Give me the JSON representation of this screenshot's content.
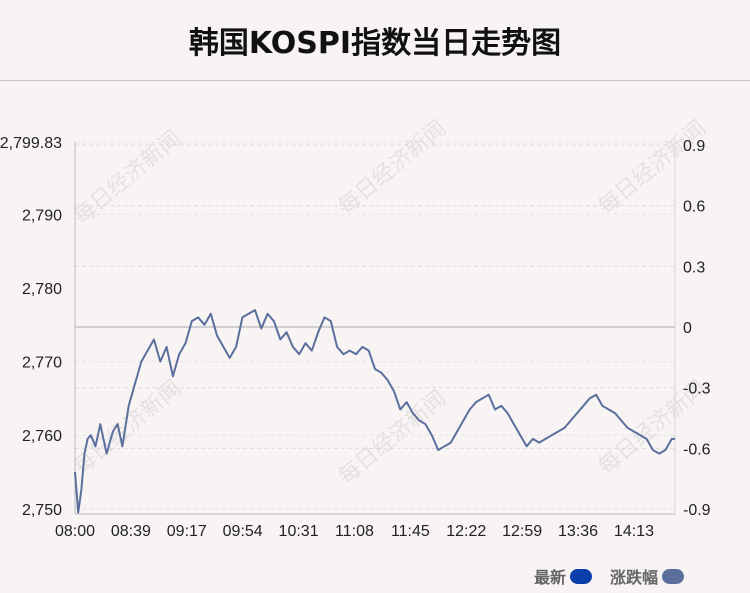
{
  "title": "韩国KOSPI指数当日走势图",
  "watermark": "每日经济新闻",
  "legend": [
    {
      "label": "最新",
      "color": "#0a3ea8"
    },
    {
      "label": "涨跌幅",
      "color": "#5b6f9d"
    }
  ],
  "chart_data": {
    "type": "line",
    "title": "韩国KOSPI指数当日走势图",
    "x_ticks": [
      "08:00",
      "08:39",
      "09:17",
      "09:54",
      "10:31",
      "11:08",
      "11:45",
      "12:22",
      "12:59",
      "13:36",
      "14:13"
    ],
    "y_left_ticks": [
      "2,750",
      "2,760",
      "2,770",
      "2,780",
      "2,790",
      "2,799.83"
    ],
    "y_left_tick_values": [
      2750,
      2760,
      2770,
      2780,
      2790,
      2799.83
    ],
    "y_right_ticks": [
      "-0.9",
      "-0.6",
      "-0.3",
      "0",
      "0.3",
      "0.6",
      "0.9"
    ],
    "y_right_tick_values": [
      -0.9,
      -0.6,
      -0.3,
      0,
      0.3,
      0.6,
      0.9
    ],
    "ylim_left": [
      2749.3,
      2799.83
    ],
    "ylim_right": [
      -0.9,
      0.9
    ],
    "grid": true,
    "legend_position": "bottom-right",
    "series": [
      {
        "name": "最新",
        "color": "#5b6f9d",
        "x_minutes": [
          0,
          2,
          4,
          6,
          8,
          10,
          13,
          16,
          20,
          24,
          27,
          30,
          34,
          38,
          42,
          46,
          50,
          54,
          58,
          62,
          66,
          70,
          74,
          78,
          82,
          86,
          90,
          94,
          98,
          102,
          106,
          110,
          114,
          118,
          122,
          126,
          130,
          134,
          138,
          142,
          146,
          150,
          154,
          158,
          162,
          166,
          170,
          174,
          178,
          182,
          186,
          190,
          194,
          198,
          202,
          206,
          210,
          214,
          218,
          222,
          226,
          230,
          234,
          238,
          242,
          246,
          250,
          254,
          258,
          262,
          266,
          270,
          274,
          278,
          282,
          286,
          290,
          294,
          298,
          302,
          306,
          310,
          314,
          318,
          322,
          326,
          330,
          334,
          338,
          342,
          346,
          350,
          354,
          358,
          362,
          366,
          370,
          374,
          378,
          380
        ],
        "values": [
          2755.0,
          2749.5,
          2752.5,
          2757.5,
          2759.5,
          2760.0,
          2758.5,
          2761.5,
          2757.5,
          2760.5,
          2761.5,
          2758.5,
          2764.0,
          2767.0,
          2770.0,
          2771.5,
          2773.0,
          2770.0,
          2772.0,
          2768.0,
          2771.0,
          2772.5,
          2775.5,
          2776.0,
          2775.0,
          2776.5,
          2773.5,
          2772.0,
          2770.5,
          2772.0,
          2776.0,
          2776.5,
          2777.0,
          2774.5,
          2776.5,
          2775.5,
          2773.0,
          2774.0,
          2772.0,
          2771.0,
          2772.5,
          2771.5,
          2774.0,
          2776.0,
          2775.5,
          2772.0,
          2771.0,
          2771.5,
          2771.0,
          2772.0,
          2771.5,
          2769.0,
          2768.5,
          2767.5,
          2766.0,
          2763.5,
          2764.5,
          2763.0,
          2762.0,
          2761.5,
          2760.0,
          2758.0,
          2758.5,
          2759.0,
          2760.5,
          2762.0,
          2763.5,
          2764.5,
          2765.0,
          2765.5,
          2763.5,
          2764.0,
          2763.0,
          2761.5,
          2760.0,
          2758.5,
          2759.5,
          2759.0,
          2759.5,
          2760.0,
          2760.5,
          2761.0,
          2762.0,
          2763.0,
          2764.0,
          2765.0,
          2765.5,
          2764.0,
          2763.5,
          2763.0,
          2762.0,
          2761.0,
          2760.5,
          2760.0,
          2759.5,
          2758.0,
          2757.5,
          2758.0,
          2759.5,
          2759.5
        ]
      }
    ]
  }
}
